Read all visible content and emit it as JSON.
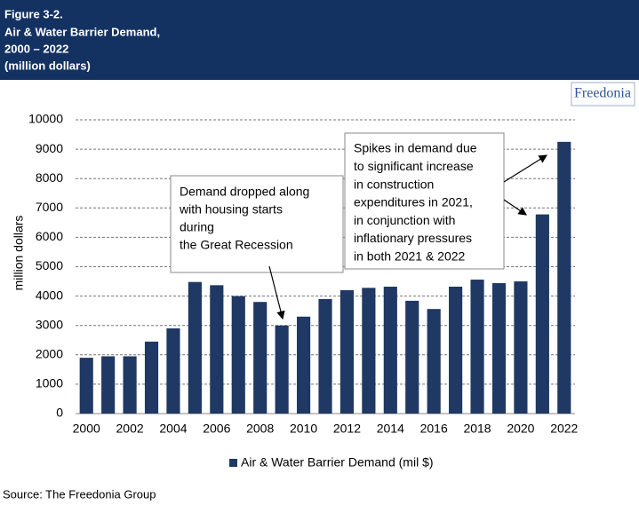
{
  "header": {
    "lines": [
      "Figure 3-2.",
      "Air & Water Barrier Demand,",
      "2000 – 2022",
      "(million dollars)"
    ]
  },
  "logo": "Freedonia",
  "source": "Source: The Freedonia Group",
  "chart_data": {
    "type": "bar",
    "y_label": "million dollars",
    "x": [
      2000,
      2001,
      2002,
      2003,
      2004,
      2005,
      2006,
      2007,
      2008,
      2009,
      2010,
      2011,
      2012,
      2013,
      2014,
      2015,
      2016,
      2017,
      2018,
      2019,
      2020,
      2021,
      2022
    ],
    "series": [
      {
        "name": "Air & Water Barrier Demand (mil $)",
        "color": "#1f3864",
        "values": [
          1900,
          1950,
          1950,
          2450,
          2900,
          4480,
          4370,
          4000,
          3800,
          3000,
          3300,
          3900,
          4200,
          4280,
          4320,
          3840,
          3560,
          4320,
          4560,
          4440,
          4500,
          6780,
          9250
        ]
      }
    ],
    "xlim": [
      1999.5,
      2022.5
    ],
    "xticks": [
      2000,
      2002,
      2004,
      2006,
      2008,
      2010,
      2012,
      2014,
      2016,
      2018,
      2020,
      2022
    ],
    "ylim": [
      0,
      10000
    ],
    "yticks": [
      0,
      1000,
      2000,
      3000,
      4000,
      5000,
      6000,
      7000,
      8000,
      9000,
      10000
    ],
    "grid": true,
    "legend": "bottom",
    "annotations": [
      {
        "lines": [
          "Demand dropped along",
          "with housing starts",
          "during",
          "the Great Recession"
        ]
      },
      {
        "lines": [
          "Spikes in demand due",
          "to significant increase",
          "in construction",
          "expenditures in 2021,",
          "in conjunction with",
          "inflationary pressures",
          "in both 2021 & 2022"
        ]
      }
    ]
  }
}
